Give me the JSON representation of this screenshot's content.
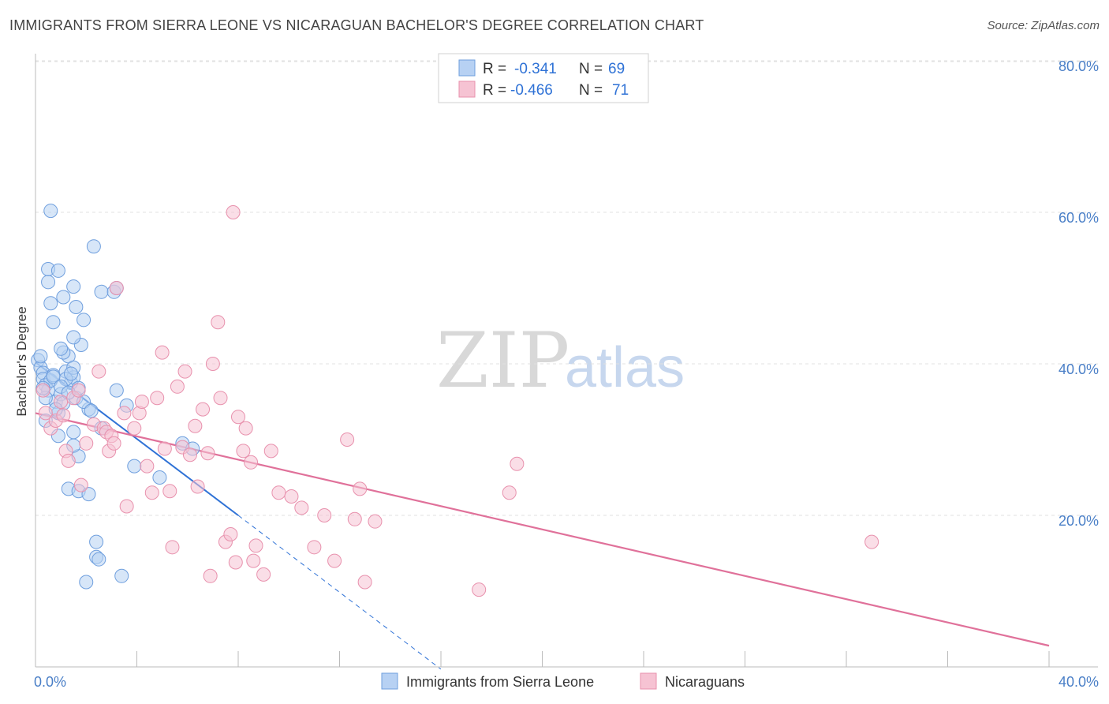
{
  "header": {
    "title": "IMMIGRANTS FROM SIERRA LEONE VS NICARAGUAN BACHELOR'S DEGREE CORRELATION CHART",
    "source": "Source: ZipAtlas.com"
  },
  "watermark": {
    "zip": "ZIP",
    "atlas": "atlas"
  },
  "colors": {
    "blue_fill": "#b7d1f3",
    "blue_stroke": "#6f9fde",
    "blue_line": "#2f72d6",
    "pink_fill": "#f6c3d3",
    "pink_stroke": "#e891ad",
    "pink_line": "#e0719a",
    "axis_label": "#4a7fc7",
    "grid": "#e0e0e0"
  },
  "legend": {
    "rows": [
      {
        "r_label": "R =",
        "r_value": "-0.341",
        "n_label": "N =",
        "n_value": "69"
      },
      {
        "r_label": "R =",
        "r_value": "-0.466",
        "n_label": "N =",
        "n_value": "71"
      }
    ]
  },
  "bottom_legend": {
    "items": [
      {
        "label": "Immigrants from Sierra Leone"
      },
      {
        "label": "Nicaraguans"
      }
    ]
  },
  "chart_data": {
    "type": "scatter",
    "title": "IMMIGRANTS FROM SIERRA LEONE VS NICARAGUAN BACHELOR'S DEGREE CORRELATION CHART",
    "xlabel": "",
    "ylabel": "Bachelor's Degree",
    "xlim": [
      0,
      40
    ],
    "ylim": [
      0,
      80
    ],
    "x_ticks": [
      0,
      4,
      8,
      12,
      16,
      20,
      24,
      28,
      32,
      36,
      40
    ],
    "x_tick_labels": [
      "0.0%",
      "40.0%"
    ],
    "y_ticks": [
      20,
      40,
      60,
      80
    ],
    "y_tick_labels": [
      "20.0%",
      "40.0%",
      "60.0%",
      "80.0%"
    ],
    "series": [
      {
        "name": "Immigrants from Sierra Leone",
        "r": -0.341,
        "n": 69,
        "trend": {
          "x0": 0,
          "y0": 40.2,
          "x1": 8.0,
          "y1": 20.0,
          "dash_x1": 16.0,
          "dash_y1": -0.3
        },
        "points": [
          [
            0.1,
            40.5
          ],
          [
            0.2,
            39.5
          ],
          [
            0.3,
            38.8
          ],
          [
            0.3,
            38.0
          ],
          [
            0.4,
            37.2
          ],
          [
            0.5,
            36.5
          ],
          [
            0.2,
            41.0
          ],
          [
            0.6,
            37.8
          ],
          [
            0.7,
            38.5
          ],
          [
            0.8,
            35.0
          ],
          [
            0.9,
            33.5
          ],
          [
            1.0,
            36.0
          ],
          [
            1.1,
            34.8
          ],
          [
            0.4,
            32.5
          ],
          [
            1.2,
            39.0
          ],
          [
            1.3,
            41.0
          ],
          [
            1.4,
            37.5
          ],
          [
            1.5,
            38.2
          ],
          [
            1.1,
            41.5
          ],
          [
            1.0,
            42.0
          ],
          [
            1.5,
            39.5
          ],
          [
            1.6,
            35.5
          ],
          [
            1.7,
            36.8
          ],
          [
            1.8,
            42.5
          ],
          [
            1.2,
            38.0
          ],
          [
            0.9,
            30.5
          ],
          [
            1.5,
            31.0
          ],
          [
            0.7,
            45.5
          ],
          [
            0.6,
            48.0
          ],
          [
            0.5,
            50.8
          ],
          [
            0.5,
            52.5
          ],
          [
            0.9,
            52.3
          ],
          [
            1.1,
            48.8
          ],
          [
            1.5,
            50.2
          ],
          [
            1.6,
            47.5
          ],
          [
            1.9,
            45.8
          ],
          [
            1.5,
            43.5
          ],
          [
            0.6,
            60.2
          ],
          [
            2.3,
            55.5
          ],
          [
            2.6,
            49.5
          ],
          [
            3.1,
            49.5
          ],
          [
            3.2,
            50.0
          ],
          [
            3.2,
            36.5
          ],
          [
            3.6,
            34.5
          ],
          [
            2.1,
            34.0
          ],
          [
            2.6,
            31.5
          ],
          [
            1.7,
            27.8
          ],
          [
            1.5,
            29.2
          ],
          [
            1.3,
            23.5
          ],
          [
            1.7,
            23.2
          ],
          [
            2.1,
            22.8
          ],
          [
            3.9,
            26.5
          ],
          [
            4.9,
            25.0
          ],
          [
            5.8,
            29.5
          ],
          [
            6.2,
            28.8
          ],
          [
            2.4,
            16.5
          ],
          [
            2.4,
            14.5
          ],
          [
            2.5,
            14.2
          ],
          [
            2.0,
            11.2
          ],
          [
            3.4,
            12.0
          ],
          [
            0.7,
            38.3
          ],
          [
            1.0,
            37.0
          ],
          [
            1.3,
            36.2
          ],
          [
            0.4,
            35.5
          ],
          [
            0.8,
            34.0
          ],
          [
            1.4,
            38.7
          ],
          [
            1.9,
            35.0
          ],
          [
            2.2,
            33.8
          ],
          [
            0.3,
            36.8
          ]
        ]
      },
      {
        "name": "Nicaraguans",
        "r": -0.466,
        "n": 71,
        "trend": {
          "x0": 0,
          "y0": 33.5,
          "x1": 40.0,
          "y1": 2.8
        },
        "points": [
          [
            0.3,
            36.5
          ],
          [
            0.4,
            33.5
          ],
          [
            0.6,
            31.5
          ],
          [
            0.8,
            32.5
          ],
          [
            1.0,
            35.0
          ],
          [
            1.1,
            33.2
          ],
          [
            1.2,
            28.5
          ],
          [
            1.3,
            27.2
          ],
          [
            1.5,
            35.5
          ],
          [
            1.7,
            36.5
          ],
          [
            1.8,
            24.0
          ],
          [
            2.0,
            29.5
          ],
          [
            2.3,
            32.0
          ],
          [
            2.5,
            39.0
          ],
          [
            2.7,
            31.5
          ],
          [
            2.8,
            31.0
          ],
          [
            2.9,
            28.5
          ],
          [
            3.0,
            30.5
          ],
          [
            3.1,
            29.5
          ],
          [
            3.2,
            50.0
          ],
          [
            3.5,
            33.5
          ],
          [
            3.6,
            21.2
          ],
          [
            3.9,
            31.5
          ],
          [
            4.1,
            33.5
          ],
          [
            4.2,
            35.0
          ],
          [
            4.4,
            26.5
          ],
          [
            4.6,
            23.0
          ],
          [
            4.8,
            35.5
          ],
          [
            5.0,
            41.5
          ],
          [
            5.1,
            28.8
          ],
          [
            5.3,
            23.2
          ],
          [
            5.4,
            15.8
          ],
          [
            5.6,
            37.0
          ],
          [
            5.8,
            29.0
          ],
          [
            5.9,
            39.0
          ],
          [
            6.1,
            28.0
          ],
          [
            6.3,
            31.8
          ],
          [
            6.4,
            23.8
          ],
          [
            6.6,
            34.0
          ],
          [
            6.8,
            28.2
          ],
          [
            6.9,
            12.0
          ],
          [
            7.0,
            40.0
          ],
          [
            7.2,
            45.5
          ],
          [
            7.3,
            35.5
          ],
          [
            7.5,
            16.5
          ],
          [
            7.7,
            17.5
          ],
          [
            7.8,
            60.0
          ],
          [
            7.9,
            13.8
          ],
          [
            8.0,
            33.0
          ],
          [
            8.2,
            28.5
          ],
          [
            8.3,
            31.5
          ],
          [
            8.5,
            27.0
          ],
          [
            8.6,
            14.0
          ],
          [
            8.7,
            16.0
          ],
          [
            9.0,
            12.2
          ],
          [
            9.3,
            28.5
          ],
          [
            9.6,
            23.0
          ],
          [
            10.1,
            22.5
          ],
          [
            10.5,
            21.0
          ],
          [
            11.0,
            15.8
          ],
          [
            11.4,
            20.0
          ],
          [
            11.8,
            14.0
          ],
          [
            12.3,
            30.0
          ],
          [
            12.6,
            19.5
          ],
          [
            12.8,
            23.5
          ],
          [
            13.0,
            11.2
          ],
          [
            13.4,
            19.2
          ],
          [
            17.5,
            10.2
          ],
          [
            18.7,
            23.0
          ],
          [
            19.0,
            26.8
          ],
          [
            33.0,
            16.5
          ]
        ]
      }
    ]
  }
}
